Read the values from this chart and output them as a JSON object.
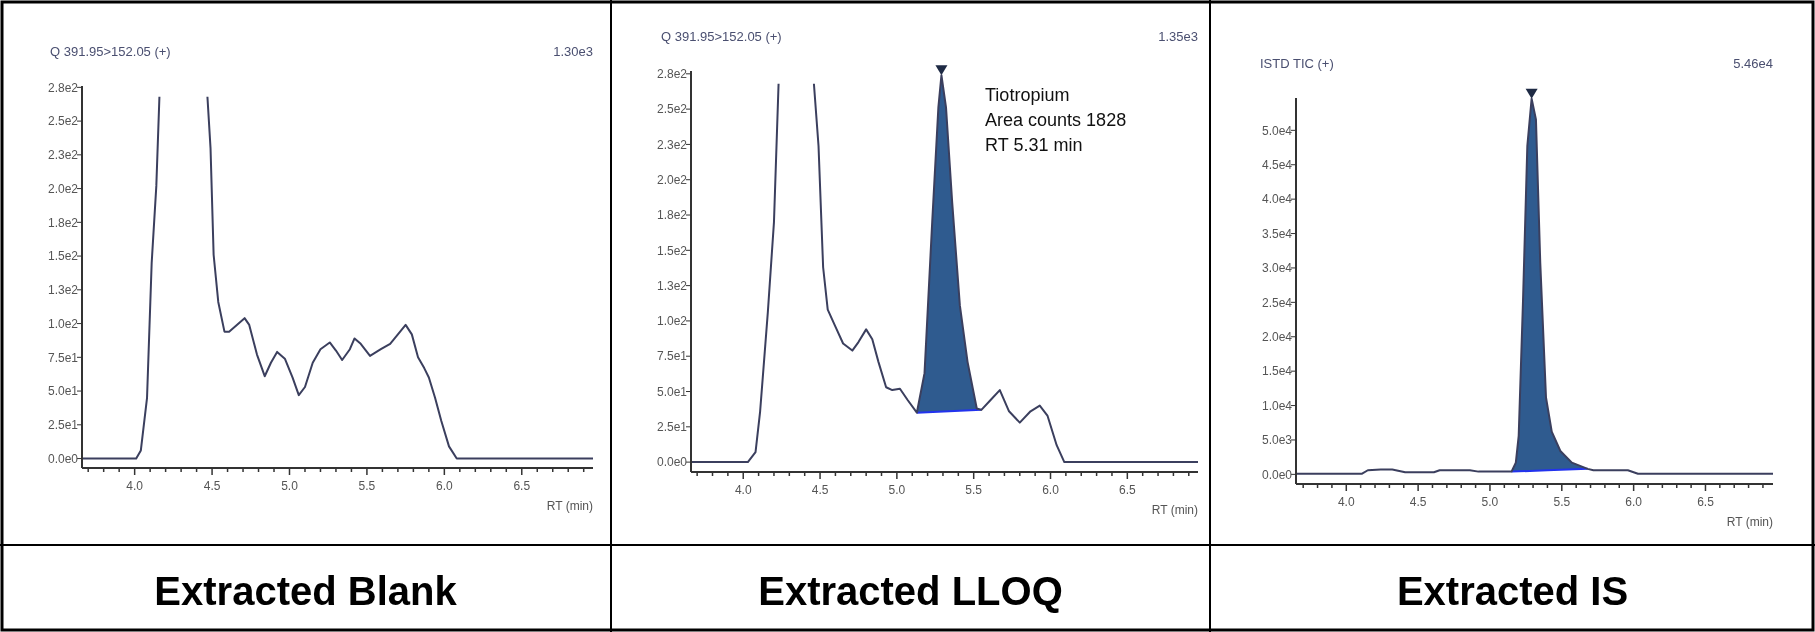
{
  "chart_data": [
    {
      "type": "line",
      "title": "Extracted Blank",
      "subtitle": "Q 391.95>152.05 (+)",
      "xlabel": "RT (min)",
      "annotations": [
        "1.30e3"
      ],
      "xlim": [
        3.66,
        6.96
      ],
      "ylim": [
        -7,
        276
      ],
      "xticks": [
        {
          "value": 3.7,
          "label": null
        },
        {
          "value": 3.8,
          "label": null
        },
        {
          "value": 3.9,
          "label": null
        },
        {
          "value": 4,
          "label": "4.0"
        },
        {
          "value": 4.1,
          "label": null
        },
        {
          "value": 4.2,
          "label": null
        },
        {
          "value": 4.3,
          "label": null
        },
        {
          "value": 4.4,
          "label": null
        },
        {
          "value": 4.5,
          "label": "4.5"
        },
        {
          "value": 4.6,
          "label": null
        },
        {
          "value": 4.7,
          "label": null
        },
        {
          "value": 4.8,
          "label": null
        },
        {
          "value": 4.9,
          "label": null
        },
        {
          "value": 5,
          "label": "5.0"
        },
        {
          "value": 5.1,
          "label": null
        },
        {
          "value": 5.2,
          "label": null
        },
        {
          "value": 5.3,
          "label": null
        },
        {
          "value": 5.4,
          "label": null
        },
        {
          "value": 5.5,
          "label": "5.5"
        },
        {
          "value": 5.6,
          "label": null
        },
        {
          "value": 5.7,
          "label": null
        },
        {
          "value": 5.8,
          "label": null
        },
        {
          "value": 5.9,
          "label": null
        },
        {
          "value": 6,
          "label": "6.0"
        },
        {
          "value": 6.1,
          "label": null
        },
        {
          "value": 6.2,
          "label": null
        },
        {
          "value": 6.3,
          "label": null
        },
        {
          "value": 6.4,
          "label": null
        },
        {
          "value": 6.5,
          "label": "6.5"
        },
        {
          "value": 6.6,
          "label": null
        },
        {
          "value": 6.7,
          "label": null
        },
        {
          "value": 6.8,
          "label": null
        },
        {
          "value": 6.9,
          "label": null
        }
      ],
      "yticks": [
        {
          "value": 0,
          "label": "0.0e0"
        },
        {
          "value": 25,
          "label": "2.5e1"
        },
        {
          "value": 50,
          "label": "5.0e1"
        },
        {
          "value": 75,
          "label": "7.5e1"
        },
        {
          "value": 100,
          "label": "1.0e2"
        },
        {
          "value": 125,
          "label": "1.3e2"
        },
        {
          "value": 150,
          "label": "1.5e2"
        },
        {
          "value": 175,
          "label": "1.8e2"
        },
        {
          "value": 200,
          "label": "2.0e2"
        },
        {
          "value": 225,
          "label": "2.3e2"
        },
        {
          "value": 250,
          "label": "2.5e2"
        },
        {
          "value": 275,
          "label": "2.8e2"
        }
      ],
      "series": [
        {
          "color": "#3b3f5e",
          "x": [
            3.66,
            4.01,
            4.04,
            4.08,
            4.11,
            4.14,
            4.16,
            4.3,
            4.47,
            4.49,
            4.51,
            4.54,
            4.58,
            4.61,
            4.66,
            4.71,
            4.74,
            4.79,
            4.84,
            4.88,
            4.92,
            4.97,
            5.02,
            5.06,
            5.1,
            5.15,
            5.2,
            5.26,
            5.3,
            5.34,
            5.39,
            5.42,
            5.46,
            5.52,
            5.59,
            5.65,
            5.7,
            5.75,
            5.79,
            5.83,
            5.87,
            5.9,
            5.94,
            5.98,
            6.03,
            6.08,
            6.96
          ],
          "values": [
            0,
            0,
            6,
            45,
            145,
            202,
            268,
            null,
            268,
            230,
            151,
            116,
            94,
            94,
            99,
            104,
            99,
            77,
            61,
            71,
            79,
            74,
            60,
            47,
            53,
            71,
            81,
            86,
            80,
            73,
            81,
            89,
            85,
            76,
            81,
            85,
            92,
            99,
            92,
            75,
            67,
            60,
            45,
            28,
            9,
            0,
            0
          ]
        }
      ]
    },
    {
      "type": "line",
      "title": "Extracted LLOQ",
      "subtitle": "Q 391.95>152.05 (+)",
      "xlabel": "RT (min)",
      "annotations": [
        "1.35e3",
        "Tiotropium",
        "Area counts 1828",
        "RT 5.31 min"
      ],
      "xlim": [
        3.66,
        6.96
      ],
      "ylim": [
        -7,
        277
      ],
      "xticks": [
        {
          "value": 3.7,
          "label": null
        },
        {
          "value": 3.8,
          "label": null
        },
        {
          "value": 3.9,
          "label": null
        },
        {
          "value": 4,
          "label": "4.0"
        },
        {
          "value": 4.1,
          "label": null
        },
        {
          "value": 4.2,
          "label": null
        },
        {
          "value": 4.3,
          "label": null
        },
        {
          "value": 4.4,
          "label": null
        },
        {
          "value": 4.5,
          "label": "4.5"
        },
        {
          "value": 4.6,
          "label": null
        },
        {
          "value": 4.7,
          "label": null
        },
        {
          "value": 4.8,
          "label": null
        },
        {
          "value": 4.9,
          "label": null
        },
        {
          "value": 5,
          "label": "5.0"
        },
        {
          "value": 5.1,
          "label": null
        },
        {
          "value": 5.2,
          "label": null
        },
        {
          "value": 5.3,
          "label": null
        },
        {
          "value": 5.4,
          "label": null
        },
        {
          "value": 5.5,
          "label": "5.5"
        },
        {
          "value": 5.6,
          "label": null
        },
        {
          "value": 5.7,
          "label": null
        },
        {
          "value": 5.8,
          "label": null
        },
        {
          "value": 5.9,
          "label": null
        },
        {
          "value": 6,
          "label": "6.0"
        },
        {
          "value": 6.1,
          "label": null
        },
        {
          "value": 6.2,
          "label": null
        },
        {
          "value": 6.3,
          "label": null
        },
        {
          "value": 6.4,
          "label": null
        },
        {
          "value": 6.5,
          "label": "6.5"
        },
        {
          "value": 6.6,
          "label": null
        },
        {
          "value": 6.7,
          "label": null
        },
        {
          "value": 6.8,
          "label": null
        },
        {
          "value": 6.9,
          "label": null
        }
      ],
      "yticks": [
        {
          "value": 0,
          "label": "0.0e0"
        },
        {
          "value": 25,
          "label": "2.5e1"
        },
        {
          "value": 50,
          "label": "5.0e1"
        },
        {
          "value": 75,
          "label": "7.5e1"
        },
        {
          "value": 100,
          "label": "1.0e2"
        },
        {
          "value": 125,
          "label": "1.3e2"
        },
        {
          "value": 150,
          "label": "1.5e2"
        },
        {
          "value": 175,
          "label": "1.8e2"
        },
        {
          "value": 200,
          "label": "2.0e2"
        },
        {
          "value": 225,
          "label": "2.3e2"
        },
        {
          "value": 250,
          "label": "2.5e2"
        },
        {
          "value": 275,
          "label": "2.8e2"
        }
      ],
      "series": [
        {
          "type": "area",
          "color": "#2f5b8f",
          "x": [
            5.13,
            5.18,
            5.23,
            5.27,
            5.29,
            5.32,
            5.36,
            5.41,
            5.46,
            5.52,
            5.55
          ],
          "values": [
            35,
            63,
            170,
            251,
            274,
            251,
            184,
            111,
            71,
            38,
            37
          ]
        },
        {
          "color": "#2233ee",
          "x": [
            5.13,
            5.34,
            5.55
          ],
          "values": [
            35,
            36,
            37
          ]
        },
        {
          "color": "#3b3f5e",
          "x": [
            3.66,
            4.03,
            4.08,
            4.11,
            4.16,
            4.2,
            4.23,
            4.35,
            4.46,
            4.49,
            4.52,
            4.55,
            4.6,
            4.65,
            4.71,
            4.75,
            4.8,
            4.84,
            4.88,
            4.93,
            4.97,
            5.02,
            5.07,
            5.13,
            5.18,
            5.23,
            5.27,
            5.29,
            5.32,
            5.36,
            5.41,
            5.46,
            5.52,
            5.55,
            5.61,
            5.67,
            5.73,
            5.8,
            5.87,
            5.93,
            5.98,
            6.04,
            6.09,
            6.96
          ],
          "values": [
            0,
            0,
            7,
            36,
            106,
            170,
            268,
            null,
            268,
            224,
            138,
            108,
            96,
            84,
            79,
            85,
            94,
            87,
            71,
            53,
            51,
            52,
            44,
            35,
            63,
            170,
            251,
            274,
            251,
            184,
            111,
            71,
            38,
            37,
            44,
            51,
            36,
            28,
            36,
            40,
            33,
            12,
            0,
            0
          ]
        }
      ]
    },
    {
      "type": "line",
      "title": "Extracted IS",
      "subtitle": "ISTD TIC (+)",
      "xlabel": "RT (min)",
      "annotations": [
        "5.46e4"
      ],
      "xlim": [
        3.65,
        6.97
      ],
      "ylim": [
        -1400,
        54700
      ],
      "xticks": [
        {
          "value": 3.7,
          "label": null
        },
        {
          "value": 3.8,
          "label": null
        },
        {
          "value": 3.9,
          "label": null
        },
        {
          "value": 4,
          "label": "4.0"
        },
        {
          "value": 4.1,
          "label": null
        },
        {
          "value": 4.2,
          "label": null
        },
        {
          "value": 4.3,
          "label": null
        },
        {
          "value": 4.4,
          "label": null
        },
        {
          "value": 4.5,
          "label": "4.5"
        },
        {
          "value": 4.6,
          "label": null
        },
        {
          "value": 4.7,
          "label": null
        },
        {
          "value": 4.8,
          "label": null
        },
        {
          "value": 4.9,
          "label": null
        },
        {
          "value": 5,
          "label": "5.0"
        },
        {
          "value": 5.1,
          "label": null
        },
        {
          "value": 5.2,
          "label": null
        },
        {
          "value": 5.3,
          "label": null
        },
        {
          "value": 5.4,
          "label": null
        },
        {
          "value": 5.5,
          "label": "5.5"
        },
        {
          "value": 5.6,
          "label": null
        },
        {
          "value": 5.7,
          "label": null
        },
        {
          "value": 5.8,
          "label": null
        },
        {
          "value": 5.9,
          "label": null
        },
        {
          "value": 6,
          "label": "6.0"
        },
        {
          "value": 6.1,
          "label": null
        },
        {
          "value": 6.2,
          "label": null
        },
        {
          "value": 6.3,
          "label": null
        },
        {
          "value": 6.4,
          "label": null
        },
        {
          "value": 6.5,
          "label": "6.5"
        },
        {
          "value": 6.6,
          "label": null
        },
        {
          "value": 6.7,
          "label": null
        },
        {
          "value": 6.8,
          "label": null
        },
        {
          "value": 6.9,
          "label": null
        }
      ],
      "yticks": [
        {
          "value": 0,
          "label": "0.0e0"
        },
        {
          "value": 5000,
          "label": "5.0e3"
        },
        {
          "value": 10000,
          "label": "1.0e4"
        },
        {
          "value": 15000,
          "label": "1.5e4"
        },
        {
          "value": 20000,
          "label": "2.0e4"
        },
        {
          "value": 25000,
          "label": "2.5e4"
        },
        {
          "value": 30000,
          "label": "3.0e4"
        },
        {
          "value": 35000,
          "label": "3.5e4"
        },
        {
          "value": 40000,
          "label": "4.0e4"
        },
        {
          "value": 45000,
          "label": "4.5e4"
        },
        {
          "value": 50000,
          "label": "5.0e4"
        }
      ],
      "series": [
        {
          "type": "area",
          "color": "#2f5b8f",
          "x": [
            5.15,
            5.18,
            5.2,
            5.23,
            5.26,
            5.29,
            5.32,
            5.35,
            5.39,
            5.43,
            5.49,
            5.57,
            5.68
          ],
          "values": [
            400,
            1700,
            5600,
            25200,
            47700,
            54600,
            51600,
            30800,
            11200,
            6200,
            3400,
            1700,
            800
          ]
        },
        {
          "color": "#2233ee",
          "x": [
            5.15,
            5.4,
            5.68
          ],
          "values": [
            400,
            600,
            800
          ]
        },
        {
          "color": "#3b3f5e",
          "x": [
            3.65,
            4.11,
            4.15,
            4.24,
            4.32,
            4.41,
            4.61,
            4.65,
            4.86,
            4.92,
            5.15,
            5.18,
            5.2,
            5.23,
            5.26,
            5.29,
            5.32,
            5.35,
            5.39,
            5.43,
            5.49,
            5.57,
            5.68,
            5.72,
            5.96,
            6.03,
            6.97
          ],
          "values": [
            100,
            100,
            600,
            700,
            700,
            300,
            300,
            600,
            600,
            400,
            400,
            1700,
            5600,
            25200,
            47700,
            54600,
            51600,
            30800,
            11200,
            6200,
            3400,
            1700,
            800,
            600,
            600,
            100,
            100
          ]
        }
      ]
    }
  ]
}
